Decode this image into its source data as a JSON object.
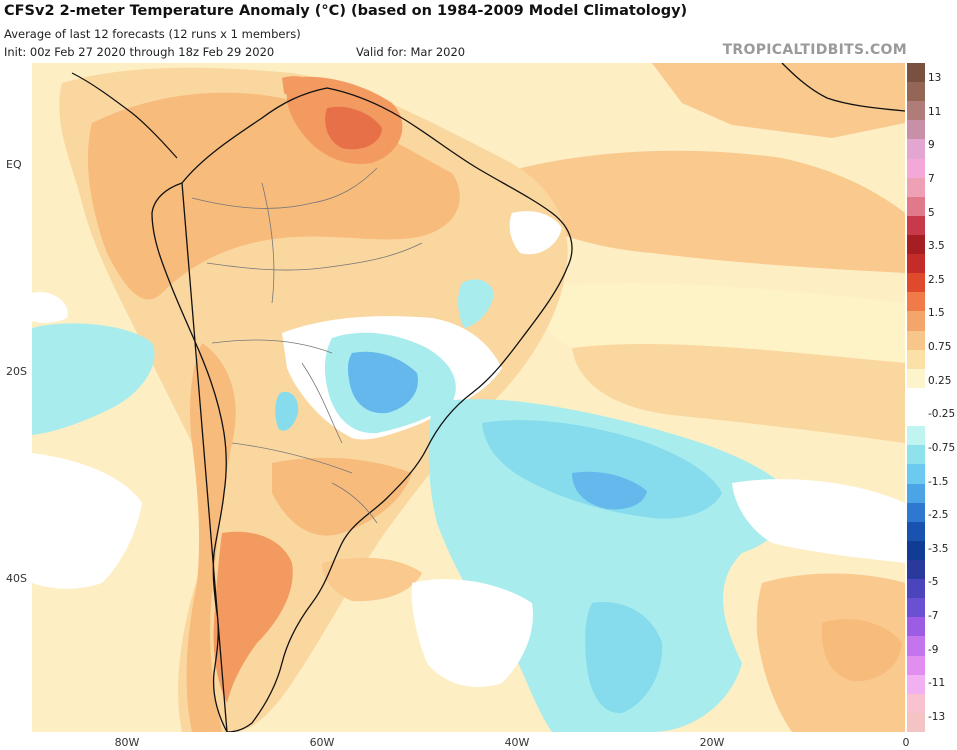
{
  "header": {
    "title": "CFSv2 2-meter Temperature Anomaly (°C) (based on 1984-2009 Model Climatology)",
    "subtitle": "Average of last 12 forecasts (12 runs x 1 members)",
    "init": "Init: 00z Feb 27 2020 through 18z Feb 29 2020",
    "valid": "Valid for: Mar 2020",
    "credit": "TROPICALTIDBITS.COM"
  },
  "axes": {
    "lat_labels": [
      "EQ",
      "20S",
      "40S"
    ],
    "lon_labels": [
      "80W",
      "60W",
      "40W",
      "20W",
      "0"
    ]
  },
  "colorbar": {
    "labels": [
      "13",
      "11",
      "9",
      "7",
      "5",
      "3.5",
      "2.5",
      "1.5",
      "0.75",
      "0.25",
      "-0.25",
      "-0.75",
      "-1.5",
      "-2.5",
      "-3.5",
      "-5",
      "-7",
      "-9",
      "-11",
      "-13"
    ],
    "colors": [
      "#7a5140",
      "#946655",
      "#b07c7a",
      "#c890a8",
      "#e2a6d0",
      "#f4a8d8",
      "#eea0b4",
      "#e07a8a",
      "#c83a4a",
      "#a61e22",
      "#c42c2a",
      "#e04a2c",
      "#f07a48",
      "#f4a66a",
      "#f8c68a",
      "#fbe0a8",
      "#fdf4cc",
      "#ffffff",
      "#ffffff",
      "#bff4f0",
      "#8fe2ec",
      "#6ccaf0",
      "#4aa4e6",
      "#2e78d0",
      "#1a52b0",
      "#103c94",
      "#2a3a9c",
      "#4c44bc",
      "#6c50d4",
      "#9c5ce4",
      "#c474ec",
      "#e08ef0",
      "#f0b0f2",
      "#f8c2d0",
      "#f4c4c4"
    ],
    "top_arrow_color": "#6a4432",
    "bottom_arrow_color": "#f6c8c8"
  },
  "palette": {
    "ocean_base": "#fdeec4",
    "pale_yellow": "#fdf3c6",
    "light_orange": "#fbd7a0",
    "orange": "#f7bb7c",
    "dark_orange": "#f29a60",
    "red_orange": "#e87048",
    "red": "#d8402e",
    "white": "#ffffff",
    "light_cyan": "#a8ecee",
    "cyan": "#86dcec",
    "blue": "#64b8ec",
    "deep_blue": "#4896e0",
    "coast": "#111111",
    "borders": "#777777"
  }
}
